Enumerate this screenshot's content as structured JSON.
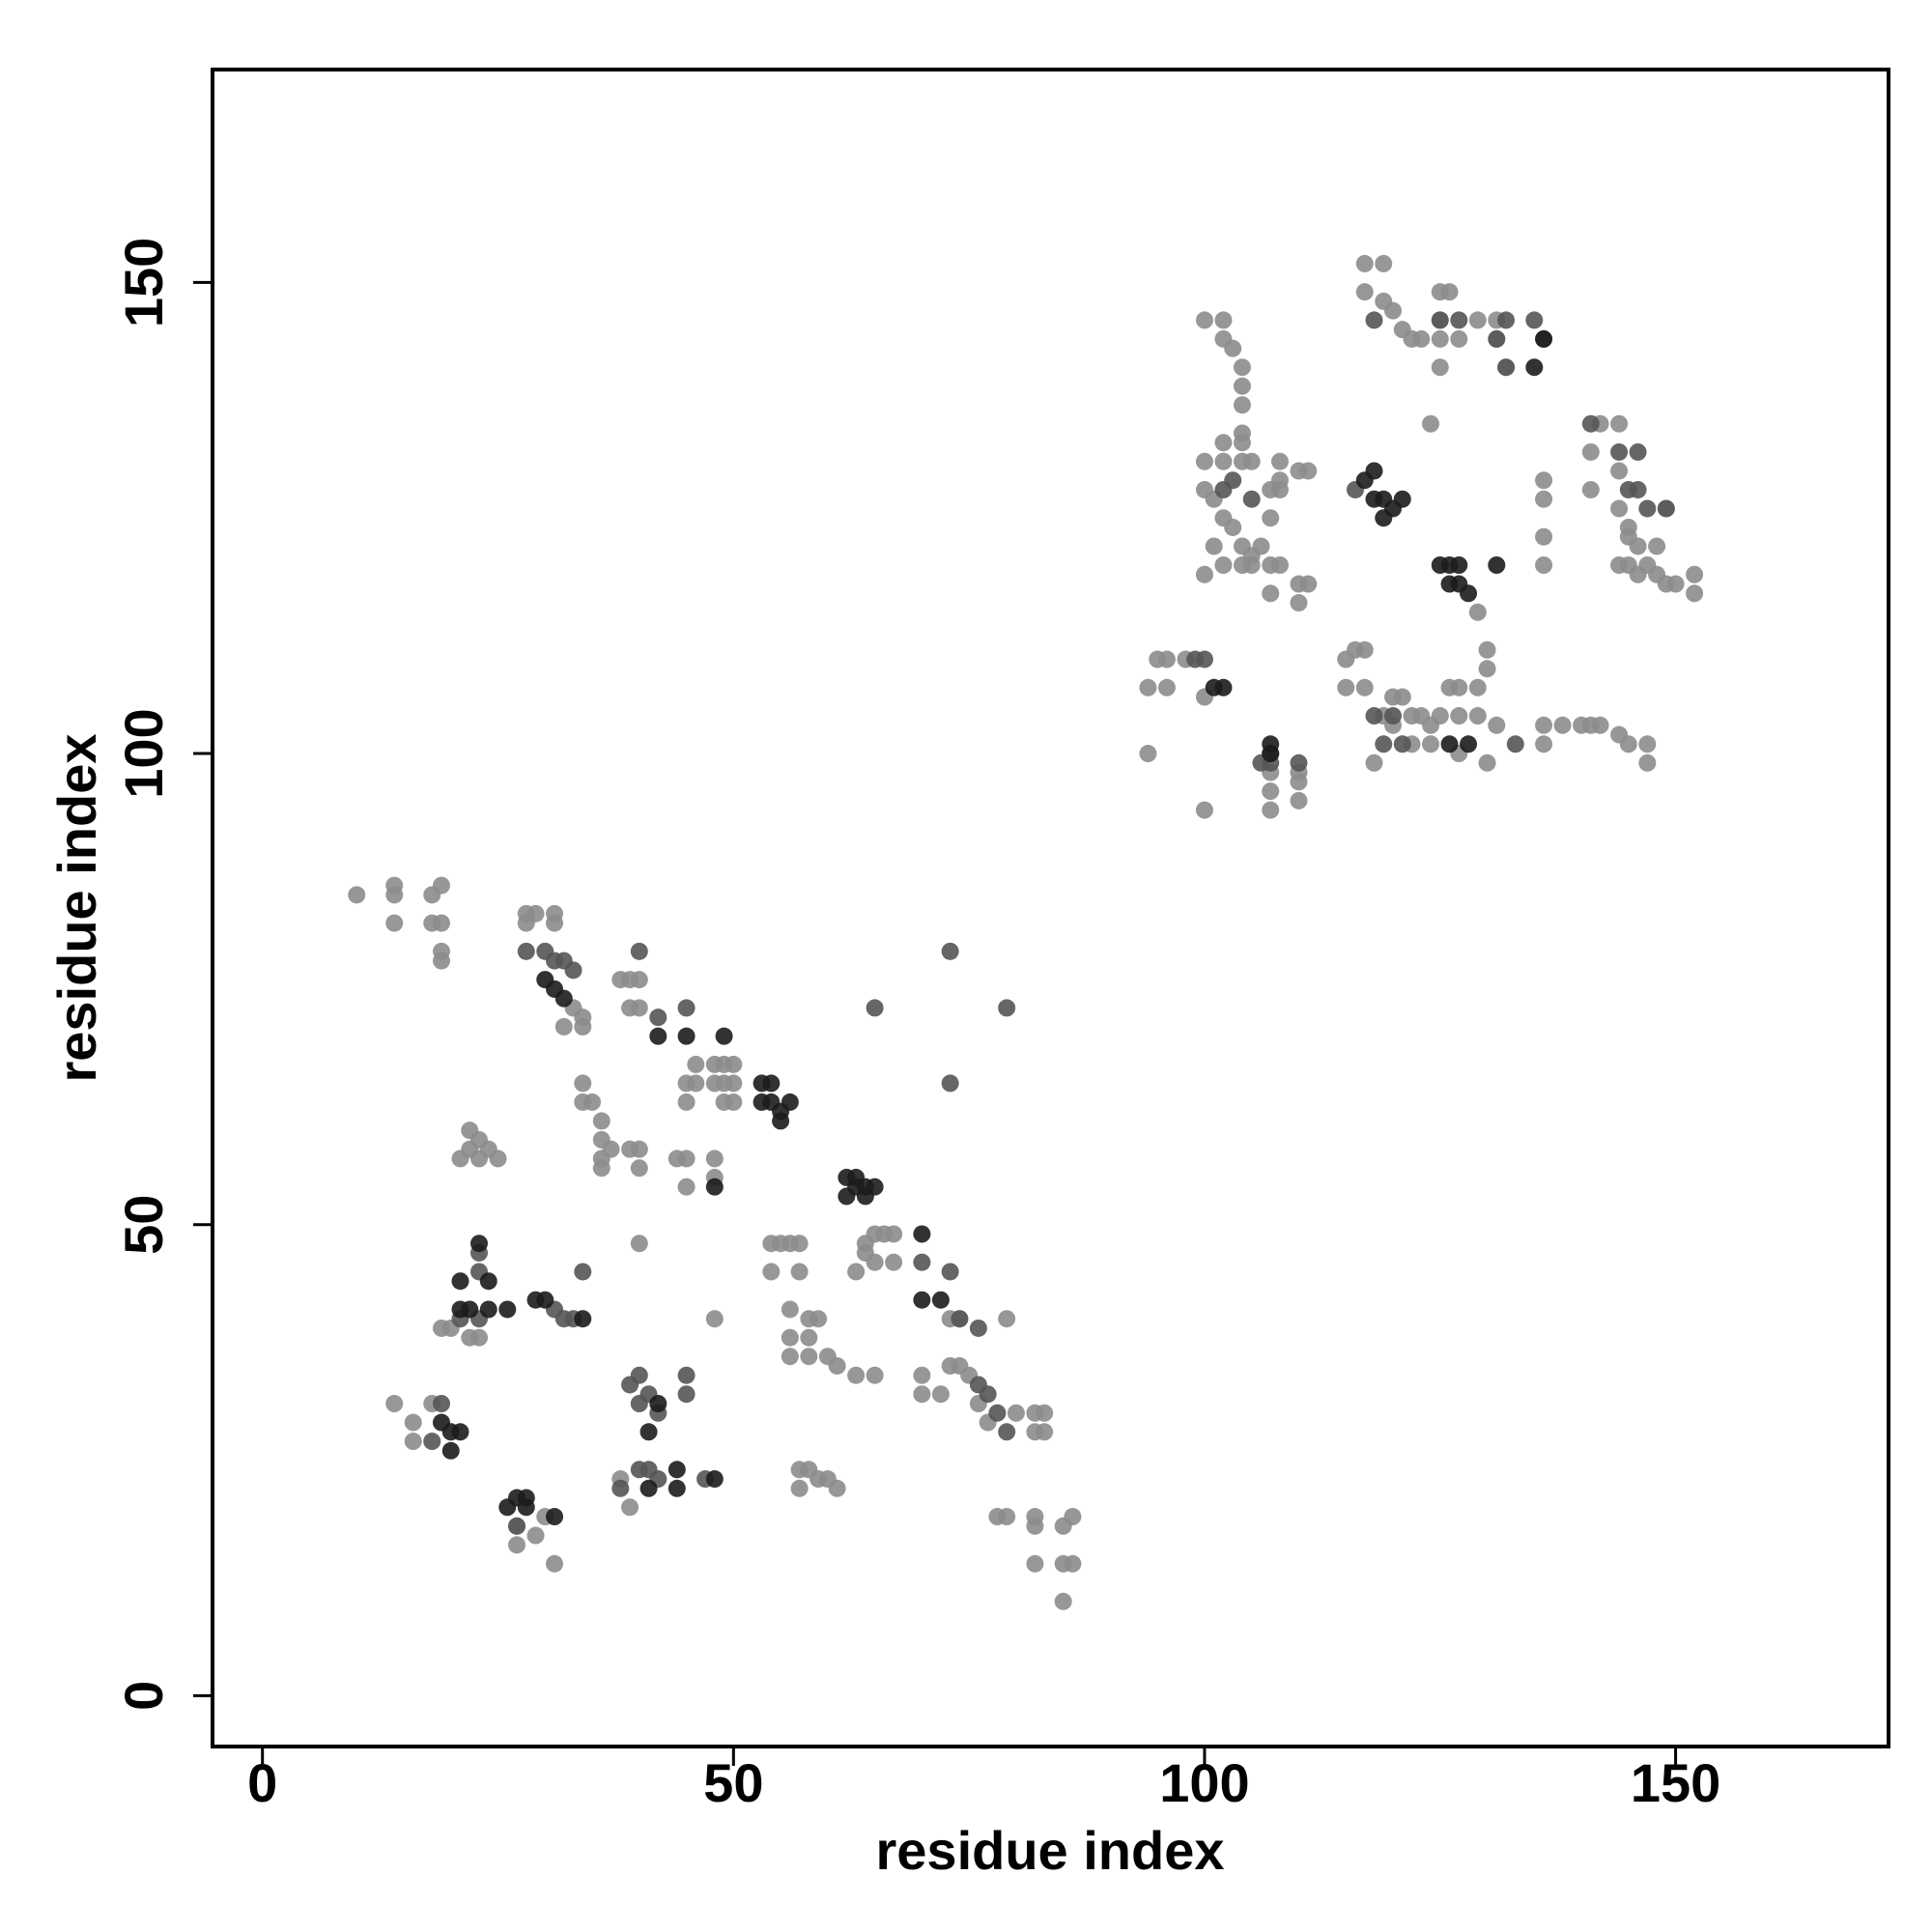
{
  "chart_data": {
    "type": "scatter",
    "xlabel": "residue index",
    "ylabel": "residue index",
    "xlim": [
      -5.3,
      172.6
    ],
    "ylim": [
      -5.4,
      172.6
    ],
    "xticks": [
      0,
      50,
      100,
      150
    ],
    "yticks": [
      0,
      50,
      100,
      150
    ],
    "grid": false,
    "series": [
      {
        "color": "#8c8c8c",
        "x": [
          10,
          14,
          14,
          14,
          18,
          19,
          18,
          19,
          19,
          19,
          28,
          29,
          31,
          28,
          31,
          32,
          34,
          34,
          33,
          38,
          39,
          40,
          39,
          40,
          46,
          48,
          49,
          50,
          45,
          46,
          48,
          49,
          50,
          45,
          49,
          50,
          34,
          35,
          34,
          36,
          36,
          37,
          36,
          39,
          40,
          40,
          36,
          44,
          45,
          45,
          48,
          48,
          64,
          65,
          66,
          67,
          64,
          65,
          63,
          67,
          73,
          74,
          79,
          54,
          55,
          56,
          57,
          54,
          57,
          56,
          58,
          59,
          56,
          58,
          56,
          58,
          60,
          61,
          63,
          65,
          57,
          58,
          57,
          59,
          60,
          61,
          19,
          20,
          22,
          23,
          22,
          23,
          22,
          23,
          24,
          25,
          21,
          14,
          16,
          16,
          18,
          27,
          27,
          29,
          30,
          31,
          40,
          48,
          38,
          39,
          74,
          75,
          80,
          82,
          83,
          82,
          83,
          76,
          77,
          73,
          70,
          70,
          72,
          78,
          79,
          82,
          82,
          82,
          85,
          86,
          85,
          86,
          85,
          94,
          95,
          96,
          96,
          98,
          100,
          94,
          100,
          100,
          102,
          102,
          103,
          104,
          104,
          104,
          104,
          102,
          104,
          100,
          102,
          104,
          105,
          100,
          101,
          102,
          103,
          104,
          105,
          102,
          104,
          105,
          100,
          101,
          108,
          108,
          107,
          108,
          107,
          110,
          111,
          106,
          107,
          108,
          107,
          110,
          111,
          110,
          107,
          107,
          107,
          110,
          110,
          110,
          115,
          116,
          117,
          115,
          117,
          120,
          121,
          119,
          120,
          122,
          123,
          124,
          125,
          127,
          129,
          126,
          127,
          129,
          130,
          130,
          131,
          136,
          138,
          140,
          141,
          142,
          144,
          145,
          147,
          147,
          136,
          130,
          127,
          124,
          122,
          118,
          117,
          119,
          117,
          119,
          120,
          121,
          122,
          123,
          125,
          126,
          125,
          129,
          131,
          125,
          127,
          131,
          125,
          132,
          124,
          136,
          136,
          136,
          136,
          129,
          142,
          144,
          141,
          144,
          141,
          144,
          145,
          145,
          146,
          148,
          144,
          145,
          147,
          148,
          149,
          150,
          146,
          152,
          152,
          149
        ],
        "values": [
          85,
          86,
          85,
          82,
          85,
          86,
          82,
          82,
          79,
          78,
          83,
          83,
          83,
          82,
          82,
          71,
          71,
          72,
          73,
          76,
          76,
          76,
          73,
          73,
          67,
          67,
          67,
          67,
          65,
          65,
          65,
          65,
          65,
          63,
          63,
          63,
          65,
          63,
          63,
          61,
          59,
          58,
          57,
          58,
          58,
          56,
          56,
          57,
          57,
          54,
          57,
          55,
          48,
          49,
          49,
          49,
          47,
          46,
          45,
          46,
          40,
          40,
          40,
          48,
          48,
          48,
          48,
          45,
          45,
          41,
          40,
          40,
          38,
          38,
          36,
          36,
          36,
          35,
          34,
          34,
          24,
          24,
          22,
          23,
          23,
          22,
          39,
          39,
          38,
          38,
          60,
          59,
          58,
          57,
          58,
          57,
          57,
          31,
          29,
          27,
          31,
          18,
          16,
          17,
          19,
          14,
          48,
          40,
          23,
          20,
          35,
          34,
          30,
          30,
          30,
          28,
          28,
          31,
          29,
          35,
          34,
          32,
          32,
          19,
          19,
          19,
          18,
          14,
          18,
          19,
          14,
          14,
          10,
          107,
          110,
          110,
          107,
          110,
          106,
          100,
          94,
          146,
          146,
          144,
          143,
          141,
          139,
          137,
          134,
          133,
          133,
          131,
          131,
          131,
          131,
          128,
          127,
          125,
          124,
          122,
          121,
          120,
          120,
          120,
          119,
          122,
          131,
          129,
          128,
          128,
          125,
          130,
          130,
          122,
          120,
          120,
          117,
          118,
          118,
          116,
          98,
          96,
          94,
          98,
          97,
          95,
          110,
          111,
          111,
          107,
          107,
          106,
          106,
          104,
          103,
          104,
          104,
          103,
          104,
          104,
          104,
          107,
          107,
          107,
          111,
          109,
          103,
          103,
          103,
          103,
          103,
          103,
          102,
          101,
          101,
          99,
          101,
          99,
          100,
          101,
          101,
          99,
          152,
          152,
          149,
          148,
          147,
          145,
          144,
          144,
          149,
          149,
          146,
          146,
          146,
          144,
          144,
          144,
          141,
          141,
          135,
          129,
          127,
          123,
          120,
          115,
          135,
          135,
          132,
          130,
          128,
          126,
          124,
          123,
          122,
          122,
          120,
          120,
          120,
          119,
          118,
          118,
          119,
          119,
          117,
          126
        ]
      },
      {
        "color": "#555555",
        "x": [
          28,
          30,
          31,
          32,
          33,
          40,
          42,
          45,
          23,
          23,
          21,
          23,
          31,
          32,
          33,
          34,
          18,
          19,
          27,
          39,
          40,
          41,
          42,
          40,
          38,
          40,
          41,
          42,
          45,
          45,
          47,
          70,
          73,
          74,
          76,
          76,
          77,
          78,
          79,
          65,
          73,
          73,
          79,
          99,
          100,
          107,
          106,
          107,
          110,
          116,
          118,
          132,
          135,
          136,
          141,
          144,
          146,
          145,
          146,
          147,
          149,
          125,
          127,
          131,
          132,
          120,
          118,
          119,
          133,
          121,
          103,
          105,
          102
        ],
        "values": [
          79,
          79,
          78,
          78,
          77,
          79,
          72,
          73,
          47,
          45,
          40,
          40,
          41,
          40,
          40,
          45,
          27,
          31,
          18,
          33,
          34,
          32,
          30,
          31,
          22,
          24,
          24,
          23,
          32,
          34,
          23,
          46,
          45,
          40,
          39,
          33,
          32,
          30,
          28,
          73,
          79,
          65,
          73,
          110,
          110,
          100,
          99,
          99,
          99,
          128,
          146,
          146,
          146,
          144,
          135,
          132,
          132,
          128,
          128,
          126,
          126,
          146,
          146,
          144,
          141,
          104,
          104,
          101,
          101,
          101,
          129,
          127,
          128
        ]
      },
      {
        "color": "#1c1c1c",
        "x": [
          30,
          31,
          32,
          42,
          45,
          49,
          53,
          54,
          53,
          54,
          55,
          56,
          55,
          48,
          62,
          63,
          62,
          63,
          64,
          65,
          64,
          70,
          70,
          72,
          23,
          21,
          24,
          21,
          22,
          24,
          26,
          29,
          30,
          34,
          19,
          20,
          21,
          20,
          26,
          27,
          28,
          28,
          31,
          41,
          42,
          44,
          44,
          41,
          48,
          117,
          118,
          118,
          119,
          120,
          121,
          119,
          125,
          126,
          127,
          126,
          127,
          128,
          131,
          101,
          102,
          107,
          107,
          126,
          128,
          136,
          135
        ],
        "values": [
          76,
          75,
          74,
          70,
          70,
          70,
          65,
          65,
          63,
          63,
          62,
          63,
          61,
          54,
          55,
          55,
          53,
          54,
          54,
          54,
          53,
          49,
          42,
          42,
          48,
          44,
          44,
          41,
          41,
          41,
          41,
          42,
          42,
          40,
          29,
          28,
          28,
          26,
          20,
          21,
          21,
          20,
          19,
          28,
          31,
          24,
          22,
          22,
          23,
          129,
          130,
          127,
          127,
          126,
          127,
          125,
          120,
          120,
          120,
          118,
          118,
          117,
          120,
          107,
          107,
          101,
          100,
          101,
          101,
          144,
          141
        ]
      }
    ]
  }
}
